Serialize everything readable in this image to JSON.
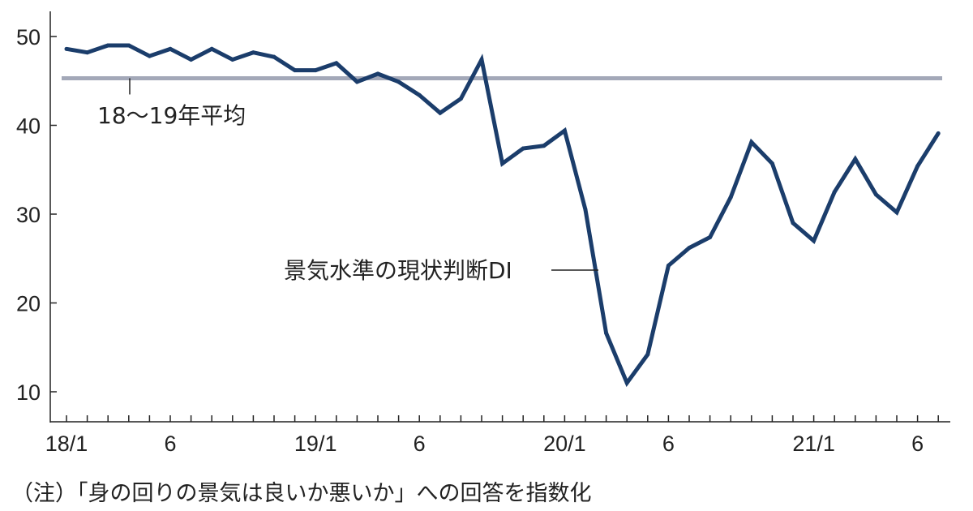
{
  "chart_data": {
    "type": "line",
    "title": "",
    "xlabel": "",
    "ylabel": "",
    "ylim": [
      6,
      53
    ],
    "yticks": [
      10,
      20,
      30,
      40,
      50
    ],
    "x_tick_labels": [
      {
        "month_index": 0,
        "label": "18/1"
      },
      {
        "month_index": 5,
        "label": "6"
      },
      {
        "month_index": 12,
        "label": "19/1"
      },
      {
        "month_index": 17,
        "label": "6"
      },
      {
        "month_index": 24,
        "label": "20/1"
      },
      {
        "month_index": 29,
        "label": "6"
      },
      {
        "month_index": 36,
        "label": "21/1"
      },
      {
        "month_index": 41,
        "label": "6"
      }
    ],
    "x": [
      "2018/1",
      "2018/2",
      "2018/3",
      "2018/4",
      "2018/5",
      "2018/6",
      "2018/7",
      "2018/8",
      "2018/9",
      "2018/10",
      "2018/11",
      "2018/12",
      "2019/1",
      "2019/2",
      "2019/3",
      "2019/4",
      "2019/5",
      "2019/6",
      "2019/7",
      "2019/8",
      "2019/9",
      "2019/10",
      "2019/11",
      "2019/12",
      "2020/1",
      "2020/2",
      "2020/3",
      "2020/4",
      "2020/5",
      "2020/6",
      "2020/7",
      "2020/8",
      "2020/9",
      "2020/10",
      "2020/11",
      "2020/12",
      "2021/1",
      "2021/2",
      "2021/3",
      "2021/4",
      "2021/5",
      "2021/6",
      "2021/7"
    ],
    "series": [
      {
        "name": "景気水準の現状判断DI",
        "color": "#1b3d6b",
        "values": [
          48.6,
          48.2,
          49.0,
          49.0,
          47.8,
          48.6,
          47.4,
          48.6,
          47.4,
          48.2,
          47.7,
          46.2,
          46.2,
          47.0,
          44.9,
          45.8,
          44.9,
          43.4,
          41.4,
          43.0,
          47.4,
          35.7,
          37.4,
          37.7,
          39.4,
          30.5,
          16.6,
          11.0,
          14.2,
          24.2,
          26.2,
          27.4,
          31.9,
          38.1,
          35.7,
          29.0,
          27.0,
          32.5,
          36.2,
          32.2,
          30.2,
          35.4,
          39.1
        ]
      },
      {
        "name": "18～19年平均",
        "color": "#a3a8b8",
        "value": 45.3,
        "kind": "horizontal-reference"
      }
    ],
    "annotations": {
      "average_label": "18～19年平均",
      "series_label": "景気水準の現状判断DI"
    },
    "note": "（注）「身の回りの景気は良いか悪いか」への回答を指数化",
    "grid": false,
    "legend": "none"
  }
}
